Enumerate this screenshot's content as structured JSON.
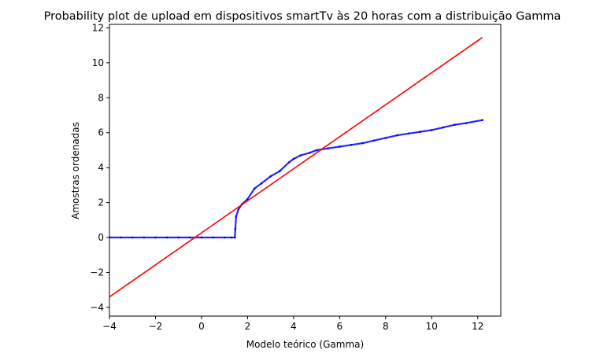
{
  "chart_data": {
    "type": "scatter",
    "title": "Probability plot de upload em dispositivos smartTv às 20 horas com a distribuição Gamma",
    "xlabel": "Modelo teórico (Gamma)",
    "ylabel": "Amostras ordenadas",
    "xlim": [
      -4,
      13
    ],
    "ylim": [
      -4.5,
      12.2
    ],
    "xticks": [
      -4,
      -2,
      0,
      2,
      4,
      6,
      8,
      10,
      12
    ],
    "yticks": [
      -4,
      -2,
      0,
      2,
      4,
      6,
      8,
      10,
      12
    ],
    "xtick_labels": [
      "−4",
      "−2",
      "0",
      "2",
      "4",
      "6",
      "8",
      "10",
      "12"
    ],
    "ytick_labels": [
      "−4",
      "−2",
      "0",
      "2",
      "4",
      "6",
      "8",
      "10",
      "12"
    ],
    "grid": false,
    "series": [
      {
        "kind": "points",
        "color": "#0000ff",
        "x": [
          -4.0,
          -3.5,
          -3.0,
          -2.5,
          -2.0,
          -1.5,
          -1.0,
          -0.5,
          0.0,
          0.5,
          1.0,
          1.3,
          1.45,
          1.47,
          1.5,
          1.6,
          1.75,
          2.0,
          2.3,
          2.6,
          3.0,
          3.4,
          3.8,
          4.0,
          4.3,
          4.7,
          5.0,
          5.5,
          6.0,
          6.5,
          7.0,
          7.5,
          8.0,
          8.5,
          9.0,
          9.5,
          10.0,
          10.5,
          11.0,
          11.5,
          12.2
        ],
        "y": [
          0.0,
          0.0,
          0.0,
          0.0,
          0.0,
          0.0,
          0.0,
          0.0,
          0.0,
          0.0,
          0.0,
          0.0,
          0.0,
          0.5,
          1.2,
          1.6,
          1.9,
          2.2,
          2.8,
          3.1,
          3.5,
          3.8,
          4.3,
          4.5,
          4.7,
          4.85,
          5.0,
          5.1,
          5.2,
          5.3,
          5.4,
          5.55,
          5.7,
          5.85,
          5.95,
          6.05,
          6.15,
          6.3,
          6.45,
          6.55,
          6.72
        ]
      },
      {
        "kind": "fit-line",
        "color": "#ff0000",
        "x": [
          -4.0,
          12.2
        ],
        "y": [
          -3.4,
          11.45
        ]
      }
    ]
  }
}
